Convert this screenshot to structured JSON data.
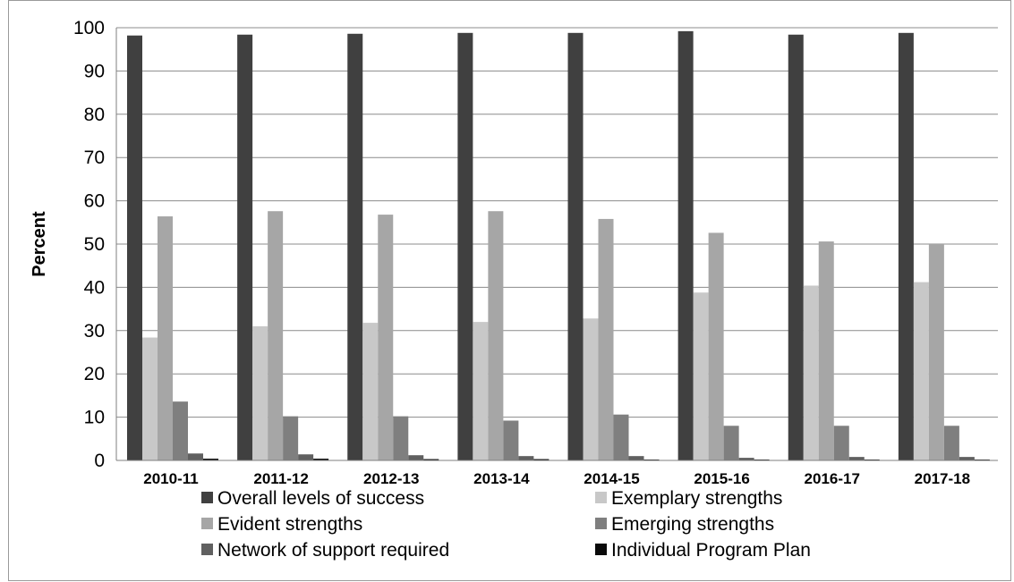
{
  "chart_data": {
    "type": "bar",
    "title": "",
    "xlabel": "",
    "ylabel": "Percent",
    "ylim": [
      0,
      100
    ],
    "yticks": [
      0,
      10,
      20,
      30,
      40,
      50,
      60,
      70,
      80,
      90,
      100
    ],
    "grid": true,
    "legend_position": "bottom",
    "categories": [
      "2010-11",
      "2011-12",
      "2012-13",
      "2013-14",
      "2014-15",
      "2015-16",
      "2016-17",
      "2017-18"
    ],
    "series": [
      {
        "name": "Overall levels of success",
        "color": "#404040",
        "values": [
          98.2,
          98.4,
          98.6,
          98.8,
          98.8,
          99.2,
          98.4,
          98.8
        ]
      },
      {
        "name": "Exemplary strengths",
        "color": "#c8c8c8",
        "values": [
          28.4,
          31.0,
          31.8,
          32.0,
          32.8,
          38.8,
          40.4,
          41.2
        ]
      },
      {
        "name": "Evident strengths",
        "color": "#a6a6a6",
        "values": [
          56.4,
          57.6,
          56.8,
          57.6,
          55.8,
          52.6,
          50.6,
          50.0
        ]
      },
      {
        "name": "Emerging strengths",
        "color": "#7f7f7f",
        "values": [
          13.6,
          10.2,
          10.2,
          9.2,
          10.6,
          8.0,
          8.0,
          8.0
        ]
      },
      {
        "name": "Network of support required",
        "color": "#606060",
        "values": [
          1.6,
          1.4,
          1.2,
          1.0,
          1.0,
          0.6,
          0.8,
          0.8
        ]
      },
      {
        "name": "Individual Program Plan",
        "color": "#0a0a0a",
        "values": [
          0.4,
          0.4,
          0.3,
          0.3,
          0.2,
          0.2,
          0.2,
          0.2
        ]
      }
    ]
  }
}
